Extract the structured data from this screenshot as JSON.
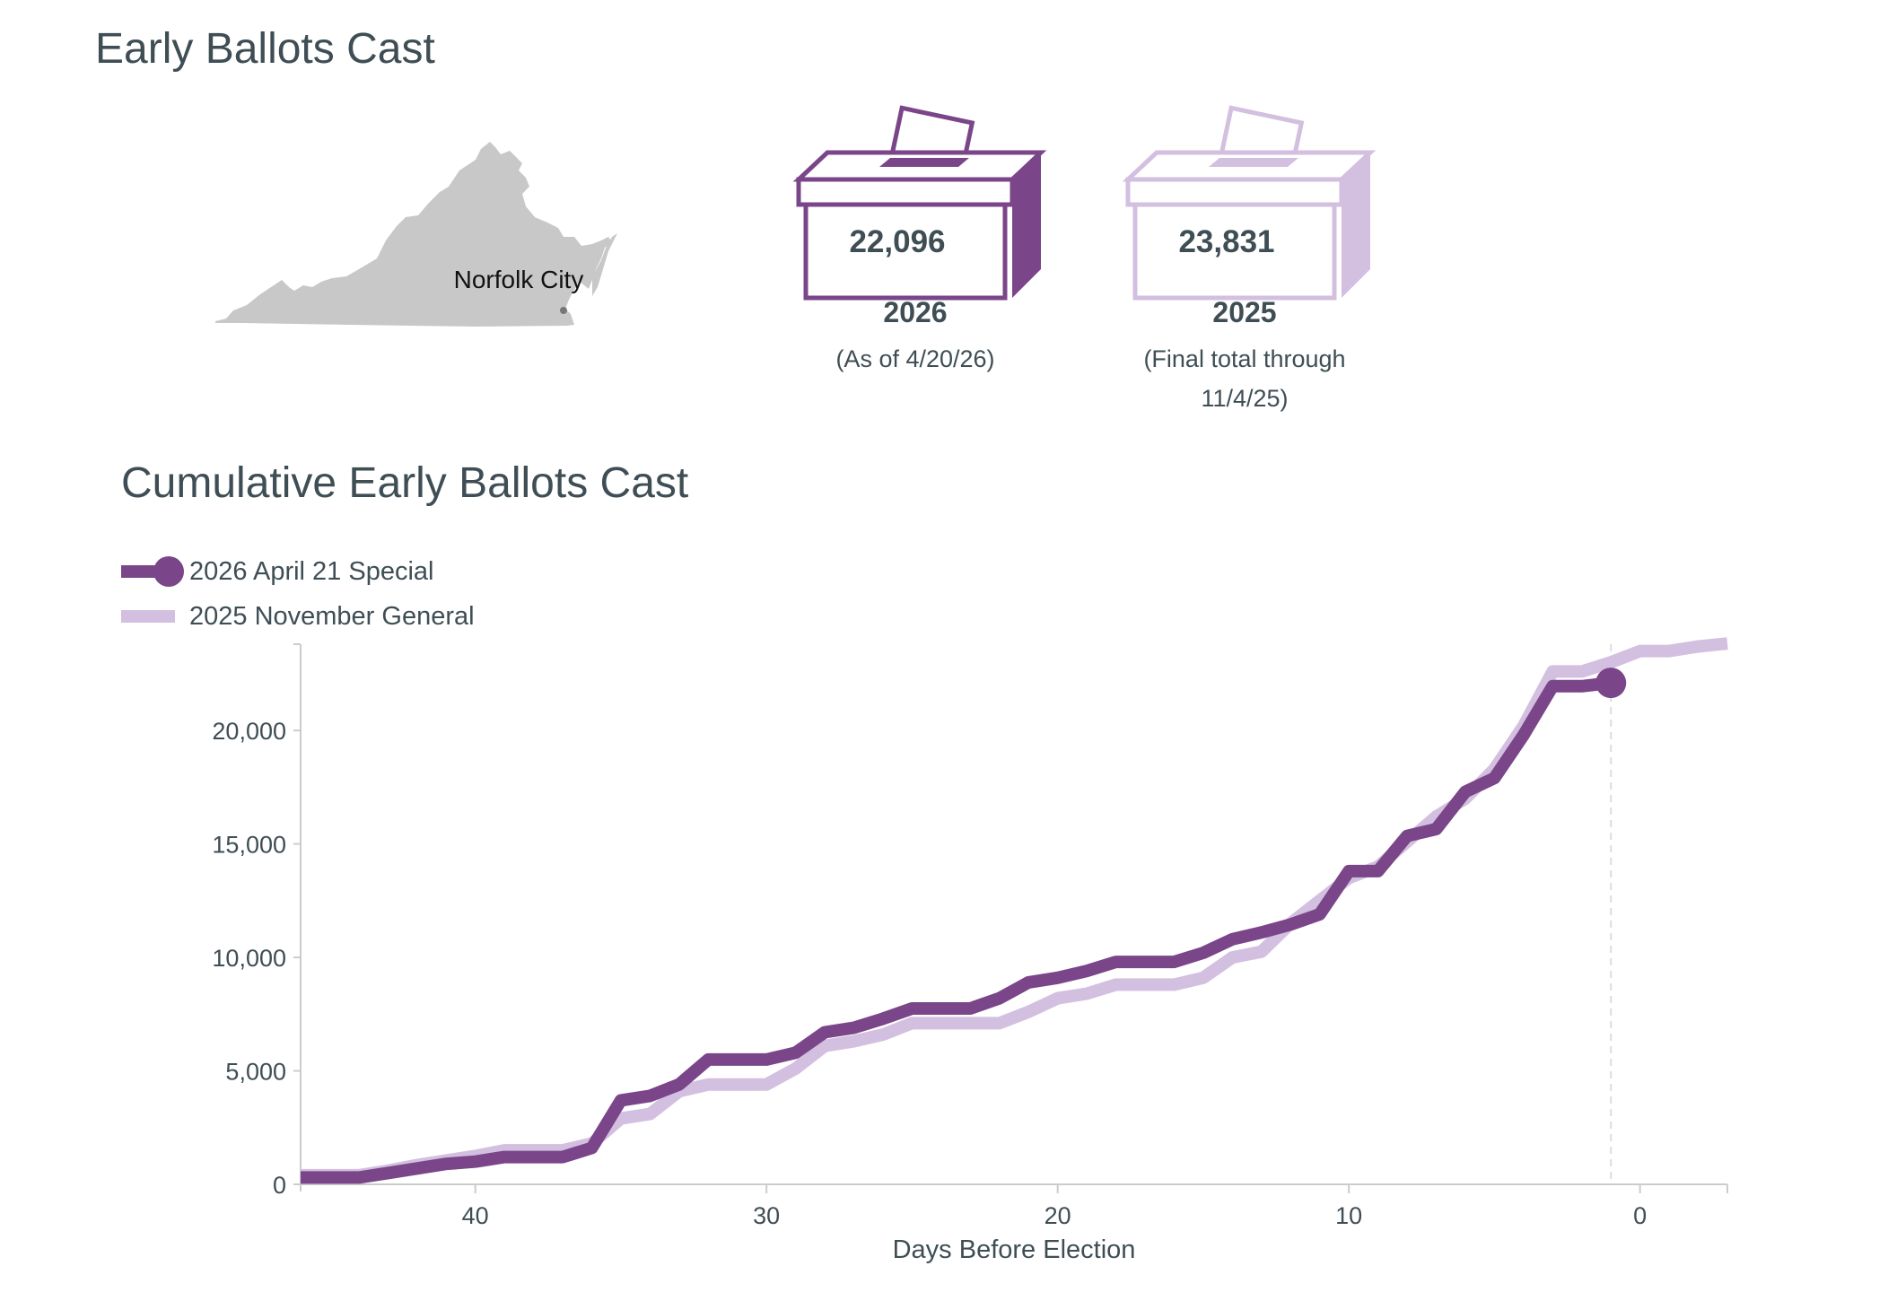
{
  "header": {
    "title": "Early Ballots Cast"
  },
  "map": {
    "label": "Norfolk City",
    "state_fill": "#c8c8c8",
    "highlight_fill": "#777777"
  },
  "ballots": [
    {
      "count": "22,096",
      "year": "2026",
      "note": "(As of 4/20/26)",
      "color": "#7a4589"
    },
    {
      "count": "23,831",
      "year": "2025",
      "note": "(Final total through 11/4/25)",
      "color": "#d3bfdf"
    }
  ],
  "chart_data": {
    "type": "line",
    "title": "Cumulative Early Ballots Cast",
    "xlabel": "Days Before Election",
    "ylabel": "",
    "x_reversed": true,
    "xlim": [
      46,
      -3
    ],
    "ylim": [
      0,
      23800
    ],
    "x_ticks": [
      40,
      30,
      20,
      10,
      0
    ],
    "y_ticks": [
      0,
      5000,
      10000,
      15000,
      20000
    ],
    "x_tick_labels": [
      "40",
      "30",
      "20",
      "10",
      "0"
    ],
    "y_tick_labels": [
      "0",
      "5,000",
      "10,000",
      "15,000",
      "20,000"
    ],
    "reference_line_x": 1,
    "legend_position": "top-left",
    "grid": false,
    "series": [
      {
        "name": "2026 April 21 Special",
        "color": "#7a4589",
        "end_marker": true,
        "x": [
          46,
          44,
          43,
          42,
          41,
          40,
          39,
          38,
          37,
          36,
          35,
          34,
          33,
          32,
          31,
          30,
          29,
          28,
          27,
          26,
          25,
          24,
          23,
          22,
          21,
          20,
          19,
          18,
          17,
          16,
          15,
          14,
          13,
          12,
          11,
          10,
          9,
          8,
          7,
          6,
          5,
          4,
          3,
          2,
          1
        ],
        "y": [
          300,
          300,
          500,
          700,
          900,
          1000,
          1200,
          1200,
          1200,
          1600,
          3700,
          3900,
          4400,
          5500,
          5500,
          5500,
          5800,
          6700,
          6900,
          7300,
          7750,
          7750,
          7750,
          8200,
          8900,
          9100,
          9400,
          9800,
          9800,
          9800,
          10200,
          10800,
          11100,
          11450,
          11900,
          13800,
          13800,
          15350,
          15650,
          17300,
          17900,
          19800,
          21950,
          21950,
          22096
        ]
      },
      {
        "name": "2025 November General",
        "color": "#d3bfdf",
        "end_marker": false,
        "x": [
          46,
          44,
          43,
          42,
          41,
          40,
          39,
          38,
          37,
          36,
          35,
          34,
          33,
          32,
          31,
          30,
          29,
          28,
          27,
          26,
          25,
          24,
          23,
          22,
          21,
          20,
          19,
          18,
          17,
          16,
          15,
          14,
          13,
          12,
          11,
          10,
          9,
          8,
          7,
          6,
          5,
          4,
          3,
          2,
          1,
          0,
          -1,
          -2,
          -3
        ],
        "y": [
          400,
          400,
          600,
          850,
          1050,
          1250,
          1500,
          1500,
          1500,
          1800,
          2900,
          3100,
          4100,
          4400,
          4400,
          4400,
          5100,
          6100,
          6300,
          6600,
          7100,
          7100,
          7100,
          7100,
          7600,
          8200,
          8400,
          8800,
          8800,
          8800,
          9100,
          10000,
          10250,
          11500,
          12500,
          13500,
          14000,
          15100,
          16200,
          17000,
          18300,
          20200,
          22600,
          22600,
          23000,
          23500,
          23500,
          23700,
          23831
        ]
      }
    ]
  }
}
